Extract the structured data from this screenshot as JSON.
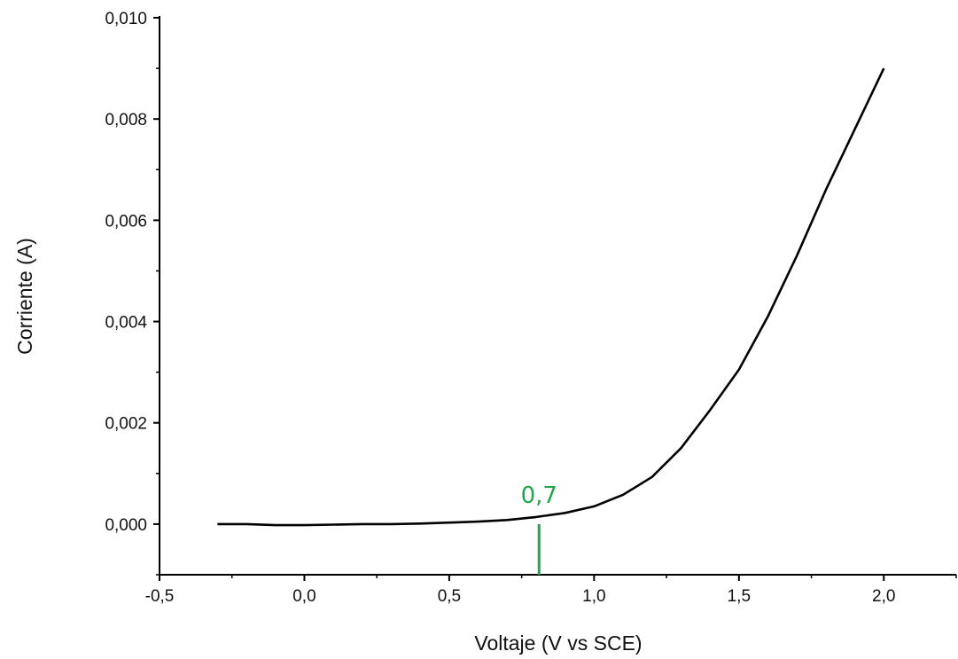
{
  "chart_data": {
    "type": "line",
    "title": "",
    "xlabel": "Voltaje (V vs SCE)",
    "ylabel": "Corriente (A)",
    "xlim": [
      -0.5,
      2.25
    ],
    "ylim": [
      -0.001,
      0.01
    ],
    "xticks": [
      -0.5,
      0.0,
      0.5,
      1.0,
      1.5,
      2.0
    ],
    "xtick_labels": [
      "-0,5",
      "0,0",
      "0,5",
      "1,0",
      "1,5",
      "2,0"
    ],
    "yticks": [
      0.0,
      0.002,
      0.004,
      0.006,
      0.008,
      0.01
    ],
    "ytick_labels": [
      "0,000",
      "0,002",
      "0,004",
      "0,006",
      "0,008",
      "0,010"
    ],
    "grid": false,
    "series": [
      {
        "color": "#000000",
        "x": [
          -0.3,
          -0.2,
          -0.1,
          0.0,
          0.1,
          0.2,
          0.3,
          0.4,
          0.5,
          0.6,
          0.7,
          0.8,
          0.9,
          1.0,
          1.1,
          1.2,
          1.3,
          1.4,
          1.5,
          1.6,
          1.7,
          1.8,
          1.9,
          2.0
        ],
        "y": [
          0.0,
          0.0,
          -2e-05,
          -2e-05,
          -1e-05,
          0.0,
          0.0,
          1e-05,
          3e-05,
          5e-05,
          8e-05,
          0.00014,
          0.00022,
          0.00035,
          0.00058,
          0.00093,
          0.0015,
          0.00225,
          0.00305,
          0.0041,
          0.0053,
          0.0066,
          0.0078,
          0.009
        ]
      }
    ],
    "annotations": [
      {
        "text": "0,7",
        "x": 0.81,
        "y_from": -0.001,
        "y_to": 0.0,
        "color": "#1fa84a"
      }
    ]
  }
}
